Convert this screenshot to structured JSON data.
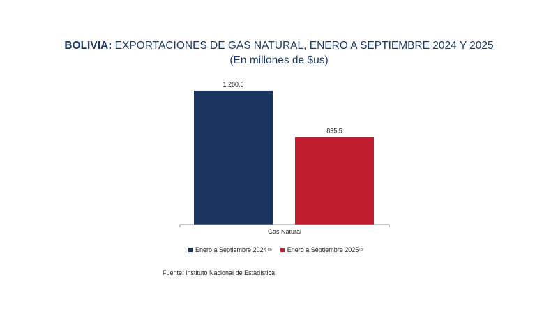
{
  "header": {
    "title_bold": "BOLIVIA:",
    "title_rest": "EXPORTACIONES DE GAS NATURAL, ENERO A SEPTIEMBRE 2024 Y 2025",
    "subtitle": "(En millones de $us)"
  },
  "chart_data": {
    "type": "bar",
    "categories": [
      "Gas Natural"
    ],
    "series": [
      {
        "name": "Enero a Septiembre 2024",
        "name_sup": "(p)",
        "values": [
          1280.6
        ],
        "value_labels": [
          "1.280,6"
        ],
        "color": "#1a355e"
      },
      {
        "name": "Enero a Septiembre  2025",
        "name_sup": "(p)",
        "values": [
          835.5
        ],
        "value_labels": [
          "835,5"
        ],
        "color": "#bf1e2e"
      }
    ],
    "title": "BOLIVIA: EXPORTACIONES DE GAS NATURAL, ENERO A SEPTIEMBRE 2024 Y 2025",
    "subtitle": "(En millones de $us)",
    "xlabel": "",
    "ylabel": "",
    "ylim": [
      0,
      1400
    ],
    "grid": false,
    "legend_position": "bottom"
  },
  "source": {
    "text": "Fuente: Instituto Nacional de Estadística"
  }
}
